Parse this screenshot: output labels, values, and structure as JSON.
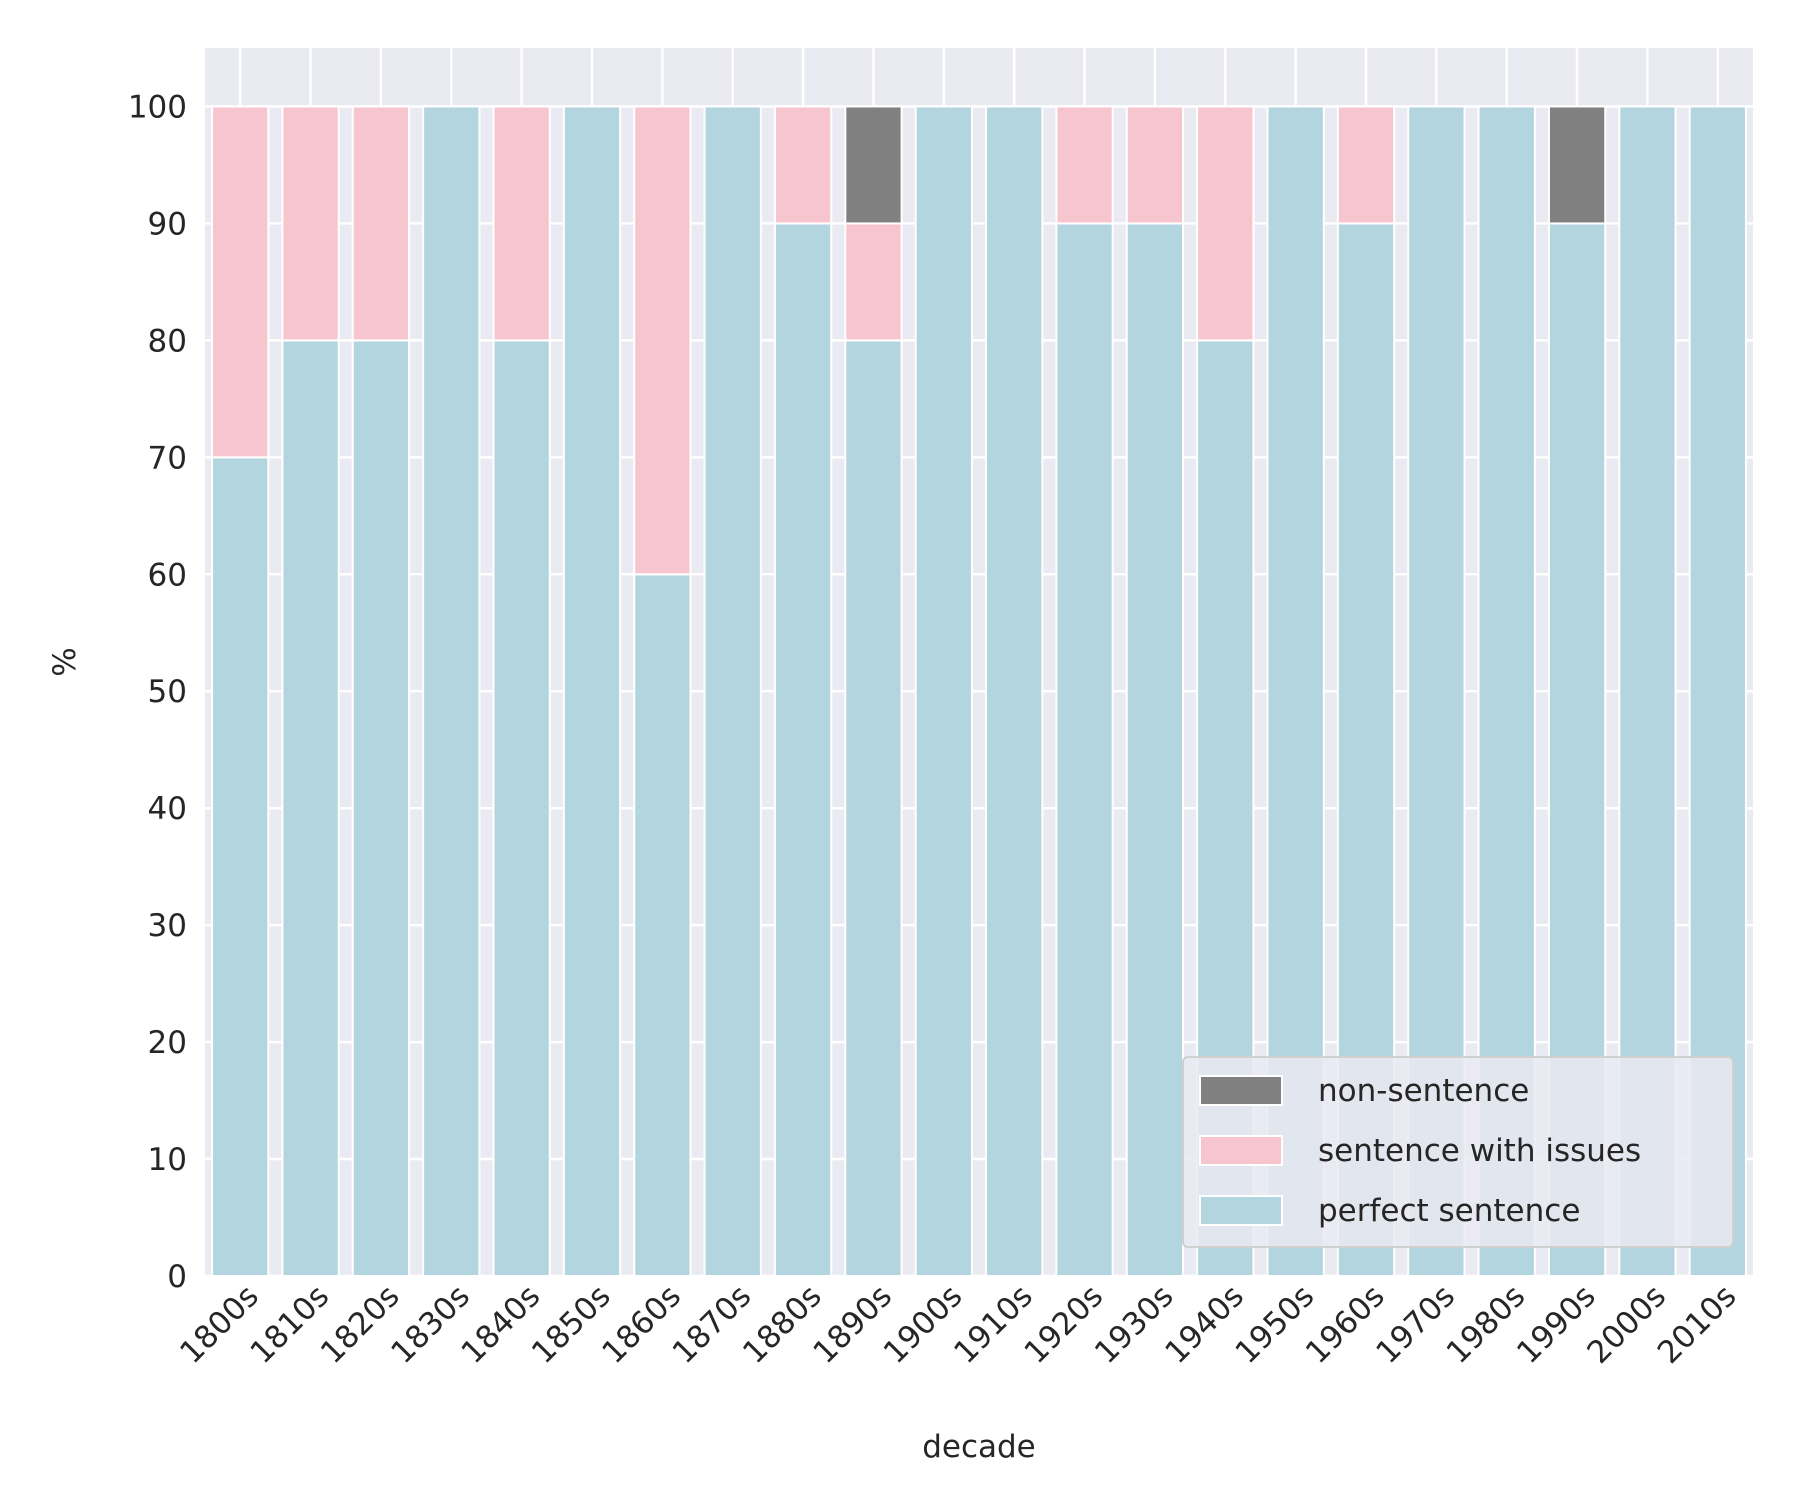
{
  "chart_data": {
    "type": "bar",
    "stacked": true,
    "title": "",
    "xlabel": "decade",
    "ylabel": "%",
    "ylim": [
      0,
      105
    ],
    "yticks": [
      0,
      10,
      20,
      30,
      40,
      50,
      60,
      70,
      80,
      90,
      100
    ],
    "grid": true,
    "legend_position": "bottom-right",
    "categories": [
      "1800s",
      "1810s",
      "1820s",
      "1830s",
      "1840s",
      "1850s",
      "1860s",
      "1870s",
      "1880s",
      "1890s",
      "1900s",
      "1910s",
      "1920s",
      "1930s",
      "1940s",
      "1950s",
      "1960s",
      "1970s",
      "1980s",
      "1990s",
      "2000s",
      "2010s"
    ],
    "series": [
      {
        "name": "perfect sentence",
        "color": "#b3d5df",
        "values": [
          70,
          80,
          80,
          100,
          80,
          100,
          60,
          100,
          90,
          80,
          100,
          100,
          90,
          90,
          80,
          100,
          90,
          100,
          100,
          90,
          100,
          100
        ]
      },
      {
        "name": "sentence with issues",
        "color": "#f7c5cd",
        "values": [
          30,
          20,
          20,
          0,
          20,
          0,
          40,
          0,
          10,
          10,
          0,
          0,
          10,
          10,
          20,
          0,
          10,
          0,
          0,
          0,
          0,
          0
        ]
      },
      {
        "name": "non-sentence",
        "color": "#808080",
        "values": [
          0,
          0,
          0,
          0,
          0,
          0,
          0,
          0,
          0,
          10,
          0,
          0,
          0,
          0,
          0,
          0,
          0,
          0,
          0,
          10,
          0,
          0
        ]
      }
    ],
    "legend_order": [
      "non-sentence",
      "sentence with issues",
      "perfect sentence"
    ]
  }
}
